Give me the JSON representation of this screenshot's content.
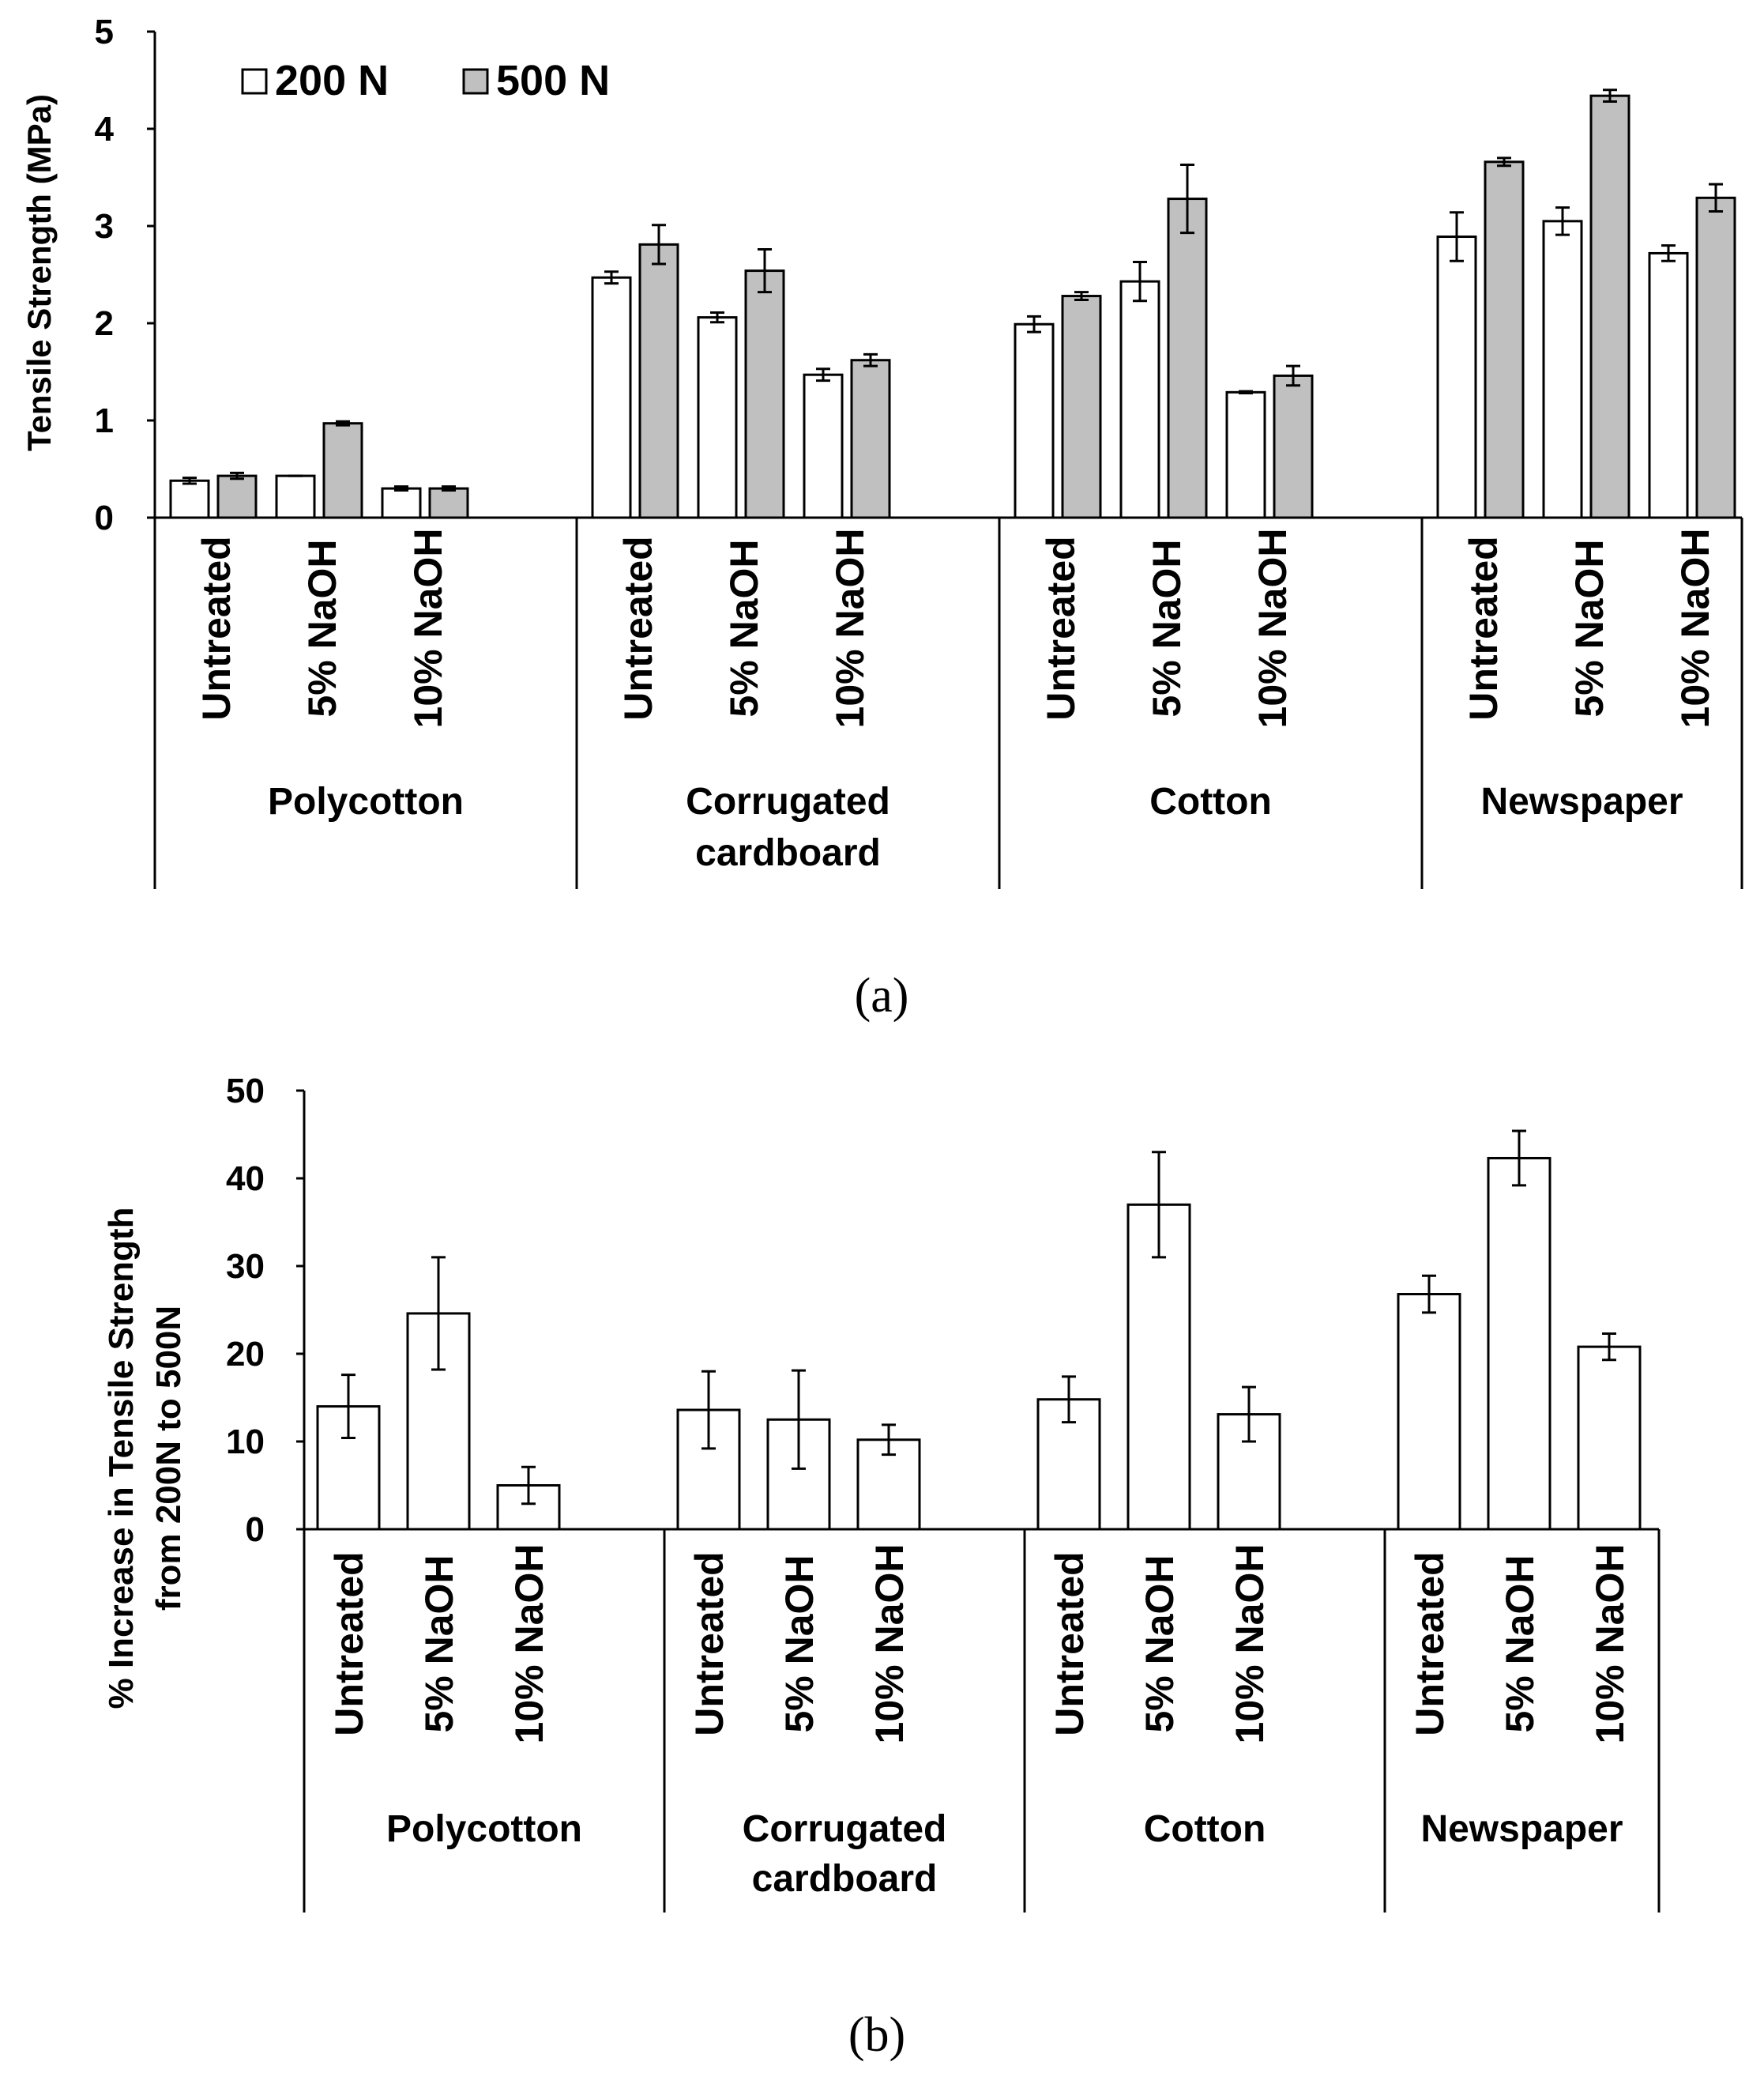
{
  "chart_data": [
    {
      "type": "bar",
      "panel_label": "(a)",
      "ylabel": "Tensile Strength (MPa)",
      "ylim": [
        0,
        5
      ],
      "yticks": [
        "0",
        "1",
        "2",
        "3",
        "4",
        "5"
      ],
      "legend": {
        "placement": "top-left",
        "entries": [
          "200 N",
          "500 N"
        ]
      },
      "groups": [
        "Polycotton",
        "Corrugated cardboard",
        "Cotton",
        "Newspaper"
      ],
      "group_lines": [
        [
          "Polycotton"
        ],
        [
          "Corrugated",
          "cardboard"
        ],
        [
          "Cotton"
        ],
        [
          "Newspaper"
        ]
      ],
      "categories": [
        "Untreated",
        "5% NaOH",
        "10% NaOH"
      ],
      "series": [
        {
          "name": "200 N",
          "color": "#ffffff",
          "values": [
            [
              0.38,
              0.43,
              0.3
            ],
            [
              2.47,
              2.06,
              1.47
            ],
            [
              1.99,
              2.43,
              1.29
            ],
            [
              2.89,
              3.05,
              2.72
            ]
          ],
          "errors": [
            [
              0.03,
              0.0,
              0.02
            ],
            [
              0.06,
              0.05,
              0.06
            ],
            [
              0.08,
              0.2,
              0.01
            ],
            [
              0.25,
              0.14,
              0.08
            ]
          ]
        },
        {
          "name": "500 N",
          "color": "#c0c0c0",
          "values": [
            [
              0.43,
              0.97,
              0.3
            ],
            [
              2.81,
              2.54,
              1.62
            ],
            [
              2.28,
              3.28,
              1.46
            ],
            [
              3.66,
              4.34,
              3.29
            ]
          ],
          "errors": [
            [
              0.03,
              0.02,
              0.02
            ],
            [
              0.2,
              0.22,
              0.06
            ],
            [
              0.04,
              0.35,
              0.1
            ],
            [
              0.04,
              0.06,
              0.14
            ]
          ]
        }
      ]
    },
    {
      "type": "bar",
      "panel_label": "(b)",
      "ylabel_lines": [
        "% Increase in Tensile Strength",
        "from 200N to 500N"
      ],
      "ylim": [
        0,
        50
      ],
      "yticks": [
        "0",
        "10",
        "20",
        "30",
        "40",
        "50"
      ],
      "groups": [
        "Polycotton",
        "Corrugated cardboard",
        "Cotton",
        "Newspaper"
      ],
      "group_lines": [
        [
          "Polycotton"
        ],
        [
          "Corrugated",
          "cardboard"
        ],
        [
          "Cotton"
        ],
        [
          "Newspaper"
        ]
      ],
      "categories": [
        "Untreated",
        "5% NaOH",
        "10% NaOH"
      ],
      "series": [
        {
          "name": "% increase",
          "color": "#ffffff",
          "values": [
            [
              14.0,
              24.6,
              5.0
            ],
            [
              13.6,
              12.5,
              10.2
            ],
            [
              14.8,
              37.0,
              13.1
            ],
            [
              26.8,
              42.3,
              20.8
            ]
          ],
          "errors": [
            [
              3.6,
              6.4,
              2.1
            ],
            [
              4.4,
              5.6,
              1.7
            ],
            [
              2.6,
              6.0,
              3.1
            ],
            [
              2.1,
              3.1,
              1.5
            ]
          ]
        }
      ]
    }
  ]
}
